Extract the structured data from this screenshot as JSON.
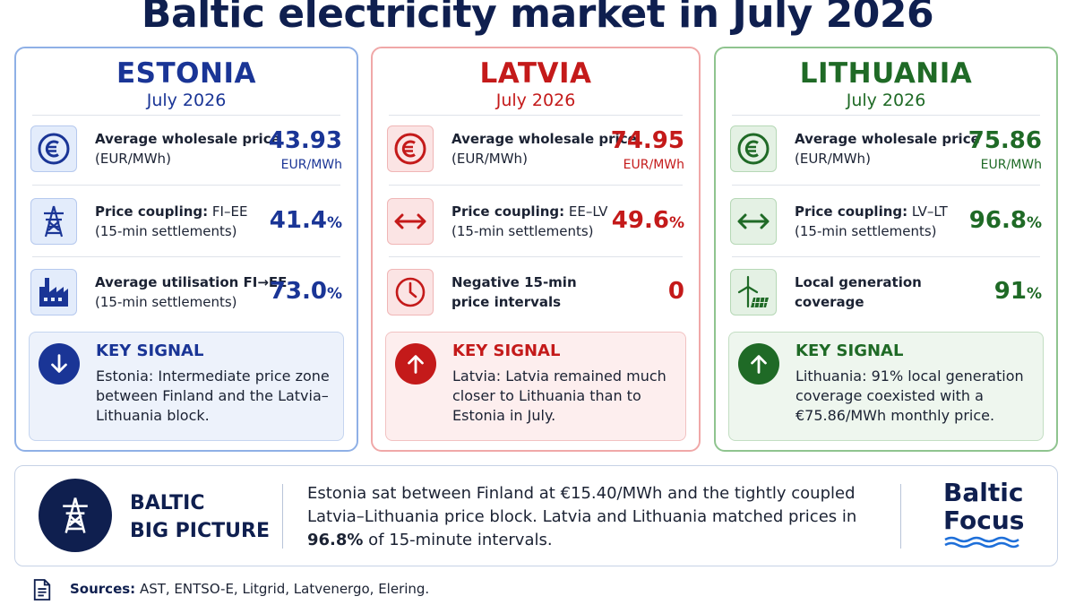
{
  "title": "Baltic electricity market in July 2026",
  "countries": [
    {
      "name": "ESTONIA",
      "period": "July 2026",
      "metrics": [
        {
          "label_bold": "Average wholesale price",
          "label_rest": "",
          "sub": "(EUR/MWh)",
          "value": "43.93",
          "suffix": "",
          "unit": "EUR/MWh",
          "icon": "euro-icon"
        },
        {
          "label_bold": "Price coupling:",
          "label_rest": " FI–EE",
          "sub": "(15-min settlements)",
          "value": "41.4",
          "suffix": "%",
          "unit": "",
          "icon": "power-tower-icon"
        },
        {
          "label_bold": "Average utilisation FI→EE",
          "label_rest": "",
          "sub": "(15-min settlements)",
          "value": "73.0",
          "suffix": "%",
          "unit": "",
          "icon": "factory-icon"
        }
      ],
      "signal_title": "KEY SIGNAL",
      "signal_text": "Estonia: Intermediate price zone between Finland and the Latvia–Lithuania block.",
      "signal_icon": "arrow-down-icon"
    },
    {
      "name": "LATVIA",
      "period": "July 2026",
      "metrics": [
        {
          "label_bold": "Average wholesale price",
          "label_rest": "",
          "sub": "(EUR/MWh)",
          "value": "74.95",
          "suffix": "",
          "unit": "EUR/MWh",
          "icon": "euro-icon"
        },
        {
          "label_bold": "Price coupling:",
          "label_rest": " EE–LV",
          "sub": "(15-min settlements)",
          "value": "49.6",
          "suffix": "%",
          "unit": "",
          "icon": "double-arrow-icon"
        },
        {
          "label_bold": "Negative 15-min",
          "label_rest": "",
          "sub": "price intervals",
          "value": "0",
          "suffix": "",
          "unit": "",
          "icon": "clock-icon"
        }
      ],
      "signal_title": "KEY SIGNAL",
      "signal_text": "Latvia: Latvia remained much closer to Lithuania than to Estonia in July.",
      "signal_icon": "arrow-up-icon"
    },
    {
      "name": "LITHUANIA",
      "period": "July 2026",
      "metrics": [
        {
          "label_bold": "Average wholesale price",
          "label_rest": "",
          "sub": "(EUR/MWh)",
          "value": "75.86",
          "suffix": "",
          "unit": "EUR/MWh",
          "icon": "euro-icon"
        },
        {
          "label_bold": "Price coupling:",
          "label_rest": " LV–LT",
          "sub": "(15-min settlements)",
          "value": "96.8",
          "suffix": "%",
          "unit": "",
          "icon": "double-arrow-icon"
        },
        {
          "label_bold": "Local generation",
          "label_rest": "",
          "sub": "coverage",
          "value": "91",
          "suffix": "%",
          "unit": "",
          "icon": "wind-solar-icon"
        }
      ],
      "signal_title": "KEY SIGNAL",
      "signal_text": "Lithuania: 91% local generation coverage coexisted with a €75.86/MWh monthly price.",
      "signal_icon": "arrow-up-icon"
    }
  ],
  "big_picture": {
    "title_line1": "BALTIC",
    "title_line2": "BIG PICTURE",
    "text_before": "Estonia sat between Finland at €15.40/MWh and the tightly coupled Latvia–Lithuania price block. Latvia and Lithuania matched prices in ",
    "text_bold": "96.8%",
    "text_after": " of 15-minute intervals."
  },
  "brand": {
    "line1": "Baltic",
    "line2": "Focus"
  },
  "sources": {
    "label": "Sources:",
    "text": " AST, ENTSO-E, Litgrid, Latvenergo, Elering."
  },
  "colors": {
    "estonia": "#1a3596",
    "latvia": "#c41a1a",
    "lithuania": "#1f6a26",
    "navy": "#0f1f4f",
    "wave": "#1e6fd9"
  }
}
